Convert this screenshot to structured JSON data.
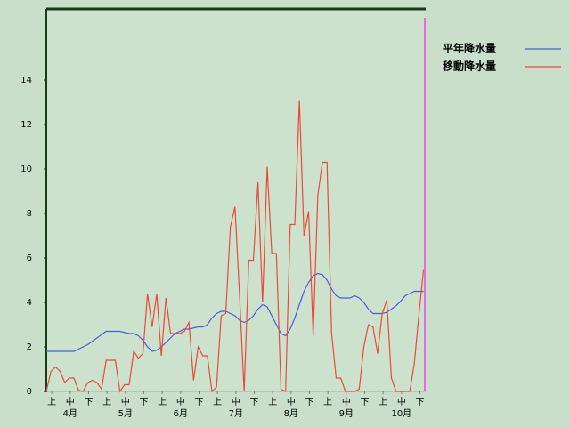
{
  "chart_data": {
    "type": "line",
    "categories": [
      null,
      "上",
      null,
      null,
      null,
      "中",
      null,
      null,
      null,
      "下",
      null,
      null,
      null,
      "上",
      null,
      null,
      null,
      "中",
      null,
      null,
      null,
      "下",
      null,
      null,
      null,
      "上",
      null,
      null,
      null,
      "中",
      null,
      null,
      null,
      "下",
      null,
      null,
      null,
      "上",
      null,
      null,
      null,
      "中",
      null,
      null,
      null,
      "下",
      null,
      null,
      null,
      "上",
      null,
      null,
      null,
      "中",
      null,
      null,
      null,
      "下",
      null,
      null,
      null,
      "上",
      null,
      null,
      null,
      "中",
      null,
      null,
      null,
      "下",
      null,
      null,
      null,
      "上",
      null,
      null,
      null,
      "中",
      null,
      null,
      null,
      "下",
      null
    ],
    "month_labels": [
      "4月",
      "5月",
      "6月",
      "7月",
      "8月",
      "9月",
      "10月"
    ],
    "series": [
      {
        "name": "平年降水量",
        "color": "#4a5be0",
        "values": [
          1.8,
          1.8,
          1.8,
          1.8,
          1.8,
          1.8,
          1.8,
          1.9,
          2.0,
          2.1,
          2.25,
          2.4,
          2.55,
          2.7,
          2.7,
          2.7,
          2.7,
          2.65,
          2.6,
          2.6,
          2.5,
          2.3,
          2.0,
          1.8,
          1.85,
          2.0,
          2.2,
          2.4,
          2.6,
          2.7,
          2.8,
          2.8,
          2.85,
          2.9,
          2.9,
          3.0,
          3.3,
          3.5,
          3.6,
          3.6,
          3.5,
          3.4,
          3.2,
          3.1,
          3.2,
          3.4,
          3.7,
          3.9,
          3.8,
          3.4,
          3.0,
          2.6,
          2.5,
          2.8,
          3.3,
          3.9,
          4.5,
          4.9,
          5.2,
          5.3,
          5.25,
          5.0,
          4.6,
          4.3,
          4.2,
          4.2,
          4.2,
          4.3,
          4.2,
          4.0,
          3.7,
          3.5,
          3.5,
          3.5,
          3.55,
          3.7,
          3.85,
          4.05,
          4.3,
          4.4,
          4.5,
          4.5,
          4.5
        ]
      },
      {
        "name": "移動降水量",
        "color": "#e84a3c",
        "values": [
          0,
          0.9,
          1.1,
          0.9,
          0.4,
          0.6,
          0.6,
          0.05,
          0,
          0.4,
          0.5,
          0.4,
          0.1,
          1.4,
          1.4,
          1.4,
          0,
          0.3,
          0.3,
          1.8,
          1.5,
          1.7,
          4.4,
          2.9,
          4.4,
          1.6,
          4.2,
          2.6,
          2.6,
          2.6,
          2.7,
          3.1,
          0.5,
          2.0,
          1.6,
          1.6,
          0,
          0.2,
          3.4,
          3.5,
          7.4,
          8.3,
          4.3,
          0,
          5.9,
          5.9,
          9.4,
          4.0,
          10.1,
          6.2,
          6.2,
          0.1,
          0,
          7.5,
          7.5,
          13.1,
          7.0,
          8.1,
          2.5,
          8.8,
          10.3,
          10.3,
          2.6,
          0.6,
          0.6,
          0,
          0,
          0,
          0.1,
          2.0,
          3.0,
          2.9,
          1.7,
          3.5,
          4.1,
          0.6,
          0,
          0,
          0,
          0,
          1.3,
          3.5,
          5.5
        ]
      }
    ],
    "ylim": [
      0,
      17.2
    ],
    "yticks": [
      0,
      2,
      4,
      6,
      8,
      10,
      12,
      14
    ]
  }
}
